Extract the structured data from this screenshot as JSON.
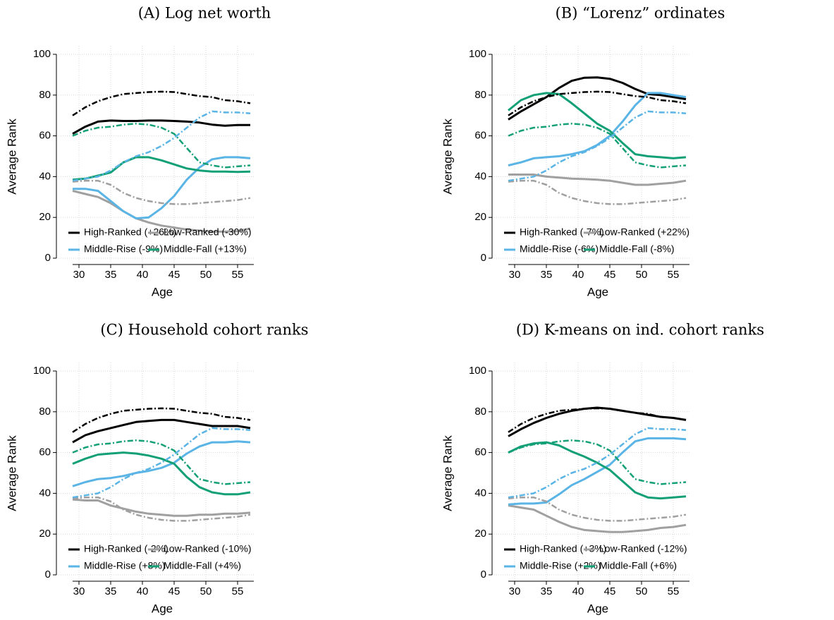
{
  "chart_data": [
    {
      "type": "line",
      "title": "(A) Log net worth",
      "xlabel": "Age",
      "ylabel": "Average Rank",
      "x": [
        29,
        31,
        33,
        35,
        37,
        39,
        41,
        43,
        45,
        47,
        49,
        51,
        53,
        55,
        57
      ],
      "xlim": [
        29,
        57
      ],
      "xticks": [
        30,
        35,
        40,
        45,
        50,
        55
      ],
      "ylim": [
        0,
        100
      ],
      "yticks": [
        0,
        20,
        40,
        60,
        80,
        100
      ],
      "grid": true,
      "series": [
        {
          "name": "High-Ranked (+26%)",
          "color": "#000000",
          "linestyle": "solid",
          "values": [
            61,
            64.5,
            67,
            67.5,
            67.3,
            67.3,
            67.5,
            67.5,
            67.3,
            67,
            66.5,
            65.5,
            65,
            65.3,
            65.3
          ]
        },
        {
          "name": "Low-Ranked (-30%)",
          "color": "#a0a0a0",
          "linestyle": "solid",
          "values": [
            33,
            31.5,
            30,
            27,
            23,
            19.5,
            17.5,
            16,
            15,
            14,
            13.5,
            13,
            13,
            13.3,
            14.5
          ]
        },
        {
          "name": "Middle-Rise (-9%)",
          "color": "#5ab4e5",
          "linestyle": "solid",
          "values": [
            34,
            34,
            33,
            28,
            23,
            19.5,
            20,
            24.5,
            30.5,
            38.5,
            44.5,
            48.5,
            49.5,
            49.5,
            49
          ]
        },
        {
          "name": "Middle-Fall (+13%)",
          "color": "#14a077",
          "linestyle": "solid",
          "values": [
            38.5,
            39,
            40.5,
            42,
            47,
            49.5,
            49.5,
            48,
            46,
            44,
            43,
            42.5,
            42.5,
            42.3,
            42.5
          ]
        },
        {
          "color": "#000000",
          "linestyle": "dashdot",
          "values": [
            70,
            74,
            77,
            79,
            80.5,
            81,
            81.5,
            81.7,
            81.5,
            80.5,
            79.5,
            79,
            77.5,
            77,
            76
          ]
        },
        {
          "color": "#a0a0a0",
          "linestyle": "dashdot",
          "values": [
            37.5,
            38,
            38,
            36,
            32,
            29.5,
            28,
            27,
            26.5,
            26.5,
            27,
            27.5,
            28,
            28.5,
            29.5
          ]
        },
        {
          "color": "#5ab4e5",
          "linestyle": "dashdot",
          "values": [
            38,
            39,
            40,
            43,
            47,
            50,
            52,
            55,
            59,
            64,
            69,
            72,
            71.5,
            71.5,
            71
          ]
        },
        {
          "color": "#14a077",
          "linestyle": "dashdot",
          "values": [
            60,
            62.5,
            64,
            64.5,
            65.5,
            66,
            65.5,
            64,
            61,
            54,
            47,
            45.5,
            44.5,
            45,
            45.5
          ]
        }
      ]
    },
    {
      "type": "line",
      "title": "(B) “Lorenz” ordinates",
      "xlabel": "Age",
      "ylabel": "Average Rank",
      "x": [
        29,
        31,
        33,
        35,
        37,
        39,
        41,
        43,
        45,
        47,
        49,
        51,
        53,
        55,
        57
      ],
      "xlim": [
        29,
        57
      ],
      "xticks": [
        30,
        35,
        40,
        45,
        50,
        55
      ],
      "ylim": [
        0,
        100
      ],
      "yticks": [
        0,
        20,
        40,
        60,
        80,
        100
      ],
      "grid": true,
      "series": [
        {
          "name": "High-Ranked (-7%)",
          "color": "#000000",
          "linestyle": "solid",
          "values": [
            68,
            72,
            75.5,
            79,
            83.5,
            87,
            88.5,
            88.7,
            88,
            86,
            83,
            80.5,
            80,
            79,
            78
          ]
        },
        {
          "name": "Low-Ranked (+22%)",
          "color": "#a0a0a0",
          "linestyle": "solid",
          "values": [
            41,
            41,
            41,
            40,
            39.5,
            39,
            38.8,
            38.5,
            38,
            37,
            36,
            36,
            36.5,
            37,
            38
          ]
        },
        {
          "name": "Middle-Rise (-6%)",
          "color": "#5ab4e5",
          "linestyle": "solid",
          "values": [
            45.5,
            47,
            49,
            49.5,
            50,
            51,
            52.5,
            55.5,
            60,
            67,
            75,
            81,
            81,
            80,
            79
          ]
        },
        {
          "name": "Middle-Fall (-8%)",
          "color": "#14a077",
          "linestyle": "solid",
          "values": [
            72.5,
            77.5,
            80,
            81,
            80.5,
            76,
            71,
            66,
            62.5,
            56.5,
            51,
            50,
            49.5,
            49,
            49.5
          ]
        },
        {
          "color": "#000000",
          "linestyle": "dashdot",
          "values": [
            70,
            74,
            77,
            79,
            80.5,
            81,
            81.5,
            81.7,
            81.5,
            80.5,
            79.5,
            79,
            77.5,
            77,
            76
          ]
        },
        {
          "color": "#a0a0a0",
          "linestyle": "dashdot",
          "values": [
            37.5,
            38,
            38,
            36,
            32,
            29.5,
            28,
            27,
            26.5,
            26.5,
            27,
            27.5,
            28,
            28.5,
            29.5
          ]
        },
        {
          "color": "#5ab4e5",
          "linestyle": "dashdot",
          "values": [
            38,
            39,
            40,
            43,
            47,
            50,
            52,
            55,
            59,
            64,
            69,
            72,
            71.5,
            71.5,
            71
          ]
        },
        {
          "color": "#14a077",
          "linestyle": "dashdot",
          "values": [
            60,
            62.5,
            64,
            64.5,
            65.5,
            66,
            65.5,
            64,
            61,
            54,
            47,
            45.5,
            44.5,
            45,
            45.5
          ]
        }
      ]
    },
    {
      "type": "line",
      "title": "(C) Household cohort ranks",
      "xlabel": "Age",
      "ylabel": "Average Rank",
      "x": [
        29,
        31,
        33,
        35,
        37,
        39,
        41,
        43,
        45,
        47,
        49,
        51,
        53,
        55,
        57
      ],
      "xlim": [
        29,
        57
      ],
      "xticks": [
        30,
        35,
        40,
        45,
        50,
        55
      ],
      "ylim": [
        0,
        100
      ],
      "yticks": [
        0,
        20,
        40,
        60,
        80,
        100
      ],
      "grid": true,
      "series": [
        {
          "name": "High-Ranked (-2%)",
          "color": "#000000",
          "linestyle": "solid",
          "values": [
            65,
            68.5,
            70.5,
            72,
            73.5,
            75,
            75.5,
            76,
            76,
            75,
            74,
            73,
            73,
            73,
            72
          ]
        },
        {
          "name": "Low-Ranked (-10%)",
          "color": "#a0a0a0",
          "linestyle": "solid",
          "values": [
            37,
            36.5,
            36.5,
            34,
            32.5,
            31,
            30,
            29.5,
            29,
            29,
            29.5,
            29.5,
            30,
            30,
            30.5
          ]
        },
        {
          "name": "Middle-Rise (+8%)",
          "color": "#5ab4e5",
          "linestyle": "solid",
          "values": [
            43.5,
            45.5,
            47,
            47.5,
            48.5,
            50,
            51,
            52.5,
            55,
            59.5,
            63,
            65,
            65,
            65.5,
            65
          ]
        },
        {
          "name": "Middle-Fall (+4%)",
          "color": "#14a077",
          "linestyle": "solid",
          "values": [
            54.5,
            57,
            59,
            59.5,
            60,
            59.5,
            58.5,
            57,
            54.5,
            48,
            43,
            40.5,
            39.5,
            39.5,
            40.5
          ]
        },
        {
          "color": "#000000",
          "linestyle": "dashdot",
          "values": [
            70,
            74,
            77,
            79,
            80.5,
            81,
            81.5,
            81.7,
            81.5,
            80.5,
            79.5,
            79,
            77.5,
            77,
            76
          ]
        },
        {
          "color": "#a0a0a0",
          "linestyle": "dashdot",
          "values": [
            37.5,
            38,
            38,
            36,
            32,
            29.5,
            28,
            27,
            26.5,
            26.5,
            27,
            27.5,
            28,
            28.5,
            29.5
          ]
        },
        {
          "color": "#5ab4e5",
          "linestyle": "dashdot",
          "values": [
            38,
            39,
            40,
            43,
            47,
            50,
            52,
            55,
            59,
            64,
            69,
            72,
            71.5,
            71.5,
            71
          ]
        },
        {
          "color": "#14a077",
          "linestyle": "dashdot",
          "values": [
            60,
            62.5,
            64,
            64.5,
            65.5,
            66,
            65.5,
            64,
            61,
            54,
            47,
            45.5,
            44.5,
            45,
            45.5
          ]
        }
      ]
    },
    {
      "type": "line",
      "title": "(D) K-means on ind. cohort ranks",
      "xlabel": "Age",
      "ylabel": "Average Rank",
      "x": [
        29,
        31,
        33,
        35,
        37,
        39,
        41,
        43,
        45,
        47,
        49,
        51,
        53,
        55,
        57
      ],
      "xlim": [
        29,
        57
      ],
      "xticks": [
        30,
        35,
        40,
        45,
        50,
        55
      ],
      "ylim": [
        0,
        100
      ],
      "yticks": [
        0,
        20,
        40,
        60,
        80,
        100
      ],
      "grid": true,
      "series": [
        {
          "name": "High-Ranked (+3%)",
          "color": "#000000",
          "linestyle": "solid",
          "values": [
            68,
            71.5,
            74.5,
            77,
            79,
            80.5,
            81.5,
            82,
            81.5,
            80.5,
            79.5,
            78.5,
            77.5,
            77,
            76
          ]
        },
        {
          "name": "Low-Ranked (-12%)",
          "color": "#a0a0a0",
          "linestyle": "solid",
          "values": [
            34,
            33,
            32,
            29,
            26,
            23.5,
            22,
            21.5,
            21,
            21,
            21.5,
            22,
            23,
            23.5,
            24.5
          ]
        },
        {
          "name": "Middle-Rise (+2%)",
          "color": "#5ab4e5",
          "linestyle": "solid",
          "values": [
            34.5,
            35,
            35,
            35.5,
            39.5,
            44,
            47,
            50.5,
            54,
            60,
            65.5,
            67,
            67,
            67,
            66.5
          ]
        },
        {
          "name": "Middle-Fall (+6%)",
          "color": "#14a077",
          "linestyle": "solid",
          "values": [
            60,
            63,
            64.5,
            65,
            63.5,
            60.5,
            58,
            55,
            51.5,
            46,
            40.5,
            38,
            37.5,
            38,
            38.5
          ]
        },
        {
          "color": "#000000",
          "linestyle": "dashdot",
          "values": [
            70,
            74,
            77,
            79,
            80.5,
            81,
            81.5,
            81.7,
            81.5,
            80.5,
            79.5,
            79,
            77.5,
            77,
            76
          ]
        },
        {
          "color": "#a0a0a0",
          "linestyle": "dashdot",
          "values": [
            37.5,
            38,
            38,
            36,
            32,
            29.5,
            28,
            27,
            26.5,
            26.5,
            27,
            27.5,
            28,
            28.5,
            29.5
          ]
        },
        {
          "color": "#5ab4e5",
          "linestyle": "dashdot",
          "values": [
            38,
            39,
            40,
            43,
            47,
            50,
            52,
            55,
            59,
            64,
            69,
            72,
            71.5,
            71.5,
            71
          ]
        },
        {
          "color": "#14a077",
          "linestyle": "dashdot",
          "values": [
            60,
            62.5,
            64,
            64.5,
            65.5,
            66,
            65.5,
            64,
            61,
            54,
            47,
            45.5,
            44.5,
            45,
            45.5
          ]
        }
      ]
    }
  ]
}
